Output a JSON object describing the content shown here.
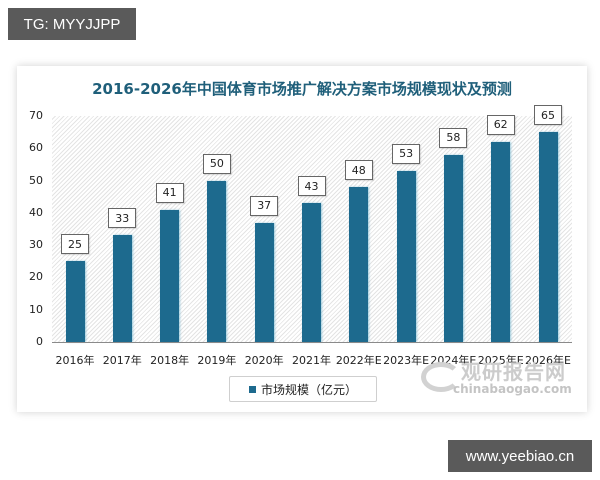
{
  "tags": {
    "top": "TG: MYYJJPP",
    "bottom": "www.yeebiao.cn"
  },
  "watermark": {
    "cn": "观研报告网",
    "en": "chinabaogao.com"
  },
  "chart_data": {
    "type": "bar",
    "title": "2016-2026年中国体育市场推广解决方案市场规模现状及预测",
    "categories": [
      "2016年",
      "2017年",
      "2018年",
      "2019年",
      "2020年",
      "2021年",
      "2022年E",
      "2023年E",
      "2024年E",
      "2025年E",
      "2026年E"
    ],
    "series": [
      {
        "name": "市场规模（亿元）",
        "values": [
          25,
          33,
          41,
          50,
          37,
          43,
          48,
          53,
          58,
          62,
          65
        ],
        "color": "#1d6a8e"
      }
    ],
    "values": [
      25,
      33,
      41,
      50,
      37,
      43,
      48,
      53,
      58,
      62,
      65
    ],
    "xlabel": "",
    "ylabel": "",
    "ylim": [
      0,
      70
    ],
    "yticks": [
      0,
      10,
      20,
      30,
      40,
      50,
      60,
      70
    ],
    "grid": false,
    "legend_position": "bottom",
    "data_labels": true
  }
}
